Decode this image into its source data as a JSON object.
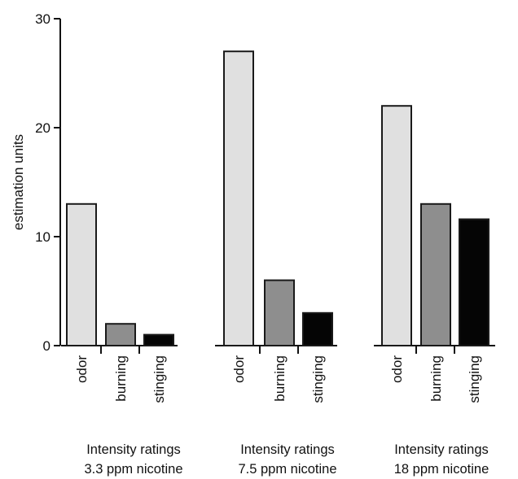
{
  "chart_data": {
    "type": "bar",
    "ylabel": "estimation units",
    "ylim": [
      0,
      30
    ],
    "yticks": [
      0,
      10,
      20,
      30
    ],
    "grid": false,
    "colors": {
      "odor": "#e0e0e0",
      "burning": "#8e8e8e",
      "stinging": "#050505",
      "edge": "#1a1a1a"
    },
    "groups": [
      {
        "caption_line1": "Intensity ratings",
        "caption_line2": "3.3 ppm nicotine",
        "categories": [
          "odor",
          "burning",
          "stinging"
        ],
        "values": [
          13,
          2,
          1
        ]
      },
      {
        "caption_line1": "Intensity ratings",
        "caption_line2": "7.5 ppm nicotine",
        "categories": [
          "odor",
          "burning",
          "stinging"
        ],
        "values": [
          27,
          6,
          3
        ]
      },
      {
        "caption_line1": "Intensity ratings",
        "caption_line2": "18 ppm nicotine",
        "categories": [
          "odor",
          "burning",
          "stinging"
        ],
        "values": [
          22,
          13,
          11.6
        ]
      }
    ]
  }
}
